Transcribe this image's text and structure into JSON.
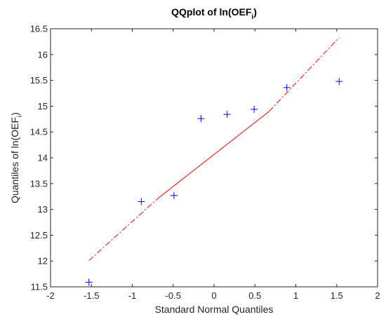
{
  "chart_data": {
    "type": "scatter",
    "title": {
      "main": "QQplot of ln(OEF",
      "sub": "i",
      "close": ")"
    },
    "xlabel": "Standard Normal Quantiles",
    "ylabel": {
      "main": "Quantiles of ln(OEF",
      "sub": "i",
      "close": ")"
    },
    "xlim": [
      -2,
      2
    ],
    "ylim": [
      11.5,
      16.5
    ],
    "xticks": [
      "-2",
      "-1.5",
      "-1",
      "-0.5",
      "0",
      "0.5",
      "1",
      "1.5",
      "2"
    ],
    "yticks": [
      "11.5",
      "12",
      "12.5",
      "13",
      "13.5",
      "14",
      "14.5",
      "15",
      "15.5",
      "16",
      "16.5"
    ],
    "grid": false,
    "series": [
      {
        "marker": "plus",
        "color": "#0000ff",
        "points": [
          {
            "x": -1.53,
            "y": 11.59
          },
          {
            "x": -0.89,
            "y": 13.15
          },
          {
            "x": -0.49,
            "y": 13.27
          },
          {
            "x": -0.16,
            "y": 14.76
          },
          {
            "x": 0.16,
            "y": 14.84
          },
          {
            "x": 0.49,
            "y": 14.94
          },
          {
            "x": 0.89,
            "y": 15.36
          },
          {
            "x": 1.53,
            "y": 15.48
          }
        ]
      }
    ],
    "reference_line": {
      "color": "#ff0000",
      "solid": {
        "x": [
          -0.674,
          0.674
        ],
        "y": [
          13.23,
          14.9
        ]
      },
      "dashdot": [
        {
          "x": [
            -1.53,
            -0.674
          ],
          "y": [
            12.01,
            13.23
          ]
        },
        {
          "x": [
            0.674,
            1.53
          ],
          "y": [
            14.9,
            16.33
          ]
        }
      ]
    }
  }
}
